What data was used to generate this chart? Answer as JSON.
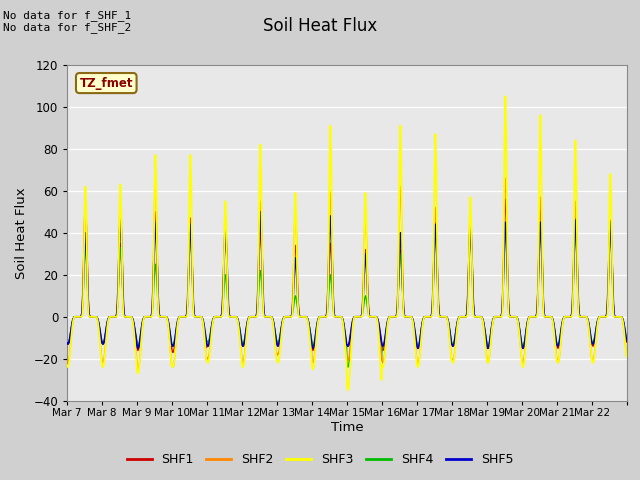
{
  "title": "Soil Heat Flux",
  "ylabel": "Soil Heat Flux",
  "xlabel": "Time",
  "ylim": [
    -40,
    120
  ],
  "no_data_text1": "No data for f_SHF_1",
  "no_data_text2": "No data for f_SHF_2",
  "tz_label": "TZ_fmet",
  "x_tick_labels": [
    "Mar 7",
    "Mar 8",
    "Mar 9",
    "Mar 10",
    "Mar 11",
    "Mar 12",
    "Mar 13",
    "Mar 14",
    "Mar 15",
    "Mar 16",
    "Mar 17",
    "Mar 18",
    "Mar 19",
    "Mar 20",
    "Mar 21",
    "Mar 22"
  ],
  "series_colors": {
    "SHF1": "#cc0000",
    "SHF2": "#ff8800",
    "SHF3": "#ffff00",
    "SHF4": "#00bb00",
    "SHF5": "#0000cc"
  },
  "legend_colors": [
    "#cc0000",
    "#ff8800",
    "#ffff00",
    "#00bb00",
    "#0000cc"
  ],
  "legend_labels": [
    "SHF1",
    "SHF2",
    "SHF3",
    "SHF4",
    "SHF5"
  ],
  "shf3_peaks": [
    62,
    63,
    77,
    77,
    55,
    82,
    59,
    91,
    59,
    91,
    87,
    57,
    105,
    96,
    84,
    68
  ],
  "shf2_peaks": [
    55,
    55,
    63,
    42,
    42,
    55,
    50,
    59,
    48,
    62,
    52,
    50,
    66,
    57,
    55,
    45
  ],
  "shf1_peaks": [
    53,
    35,
    50,
    47,
    40,
    41,
    34,
    35,
    32,
    32,
    45,
    44,
    56,
    55,
    47,
    46
  ],
  "shf4_peaks": [
    33,
    33,
    25,
    40,
    20,
    22,
    10,
    20,
    10,
    30,
    42,
    42,
    44,
    44,
    42,
    42
  ],
  "shf5_peaks": [
    40,
    46,
    45,
    44,
    42,
    50,
    28,
    48,
    30,
    40,
    44,
    43,
    45,
    45,
    46,
    45
  ],
  "shf3_troughs": [
    -24,
    -24,
    -27,
    -24,
    -22,
    -24,
    -22,
    -25,
    -35,
    -24,
    -24,
    -22,
    -22,
    -24,
    -22,
    -22
  ],
  "shf1_troughs": [
    -13,
    -13,
    -16,
    -17,
    -14,
    -14,
    -13,
    -16,
    -14,
    -16,
    -15,
    -14,
    -15,
    -15,
    -15,
    -14
  ],
  "shf2_troughs": [
    -22,
    -22,
    -26,
    -24,
    -20,
    -22,
    -18,
    -22,
    -21,
    -22,
    -23,
    -21,
    -22,
    -22,
    -22,
    -21
  ],
  "shf4_troughs": [
    -13,
    -13,
    -14,
    -14,
    -12,
    -13,
    -12,
    -14,
    -24,
    -14,
    -14,
    -13,
    -14,
    -14,
    -13,
    -12
  ],
  "shf5_troughs": [
    -13,
    -13,
    -15,
    -14,
    -14,
    -14,
    -14,
    -15,
    -14,
    -14,
    -15,
    -14,
    -15,
    -15,
    -14,
    -13
  ]
}
